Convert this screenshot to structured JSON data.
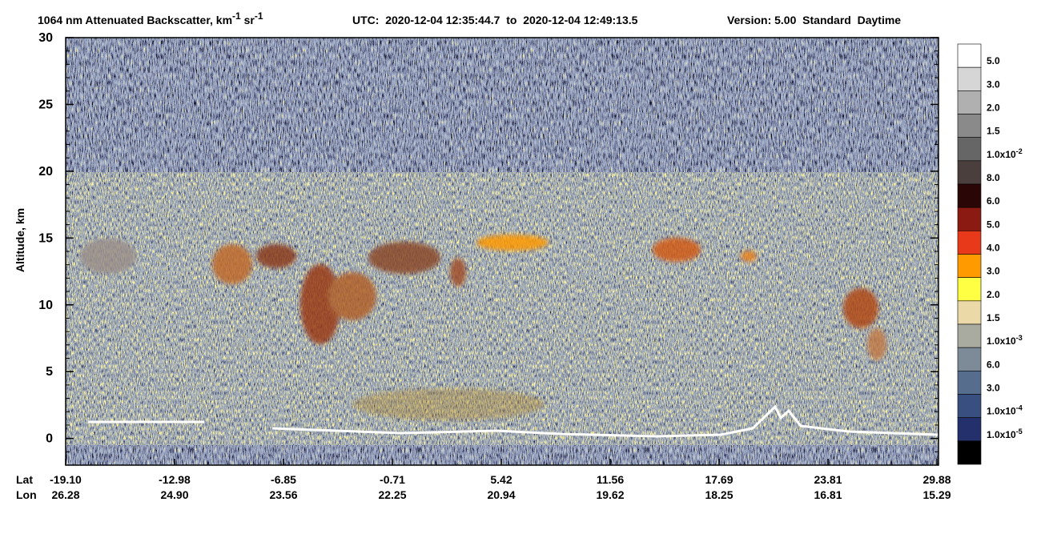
{
  "header": {
    "title_main": "1064 nm Attenuated Backscatter, km",
    "title_exp_1": "-1",
    "title_unit_2": "sr",
    "title_exp_2": "-1",
    "utc": "UTC:  2020-12-04 12:35:44.7  to  2020-12-04 12:49:13.5",
    "version": "Version: 5.00  Standard  Daytime"
  },
  "chart_data": {
    "type": "heatmap",
    "y_label": "Altitude, km",
    "ylim": [
      -2,
      30
    ],
    "yticks": [
      0,
      5,
      10,
      15,
      20,
      25,
      30
    ],
    "x_row_labels": [
      "Lat",
      "Lon"
    ],
    "lat": [
      "-19.10",
      "-12.98",
      "-6.85",
      "-0.71",
      "5.42",
      "11.56",
      "17.69",
      "23.81",
      "29.88"
    ],
    "lon": [
      "26.28",
      "24.90",
      "23.56",
      "22.25",
      "20.94",
      "19.62",
      "18.25",
      "16.81",
      "15.29"
    ],
    "colorbar": {
      "colors": [
        "#ffffff",
        "#d6d6d6",
        "#b0b0b0",
        "#8a8a8a",
        "#666666",
        "#4a3f3c",
        "#2b0606",
        "#8a1a12",
        "#e8391a",
        "#ff9a00",
        "#ffff44",
        "#ebd9a8",
        "#a9aba0",
        "#7d8a98",
        "#566d8e",
        "#394f80",
        "#24306c",
        "#000000"
      ],
      "labels": [
        {
          "text": "5.0"
        },
        {
          "text": "3.0"
        },
        {
          "text": "2.0"
        },
        {
          "text": "1.5"
        },
        {
          "text": "1.0x10",
          "exp": "-2"
        },
        {
          "text": "8.0"
        },
        {
          "text": "6.0"
        },
        {
          "text": "5.0"
        },
        {
          "text": "4.0"
        },
        {
          "text": "3.0"
        },
        {
          "text": "2.0"
        },
        {
          "text": "1.5"
        },
        {
          "text": "1.0x10",
          "exp": "-3"
        },
        {
          "text": "6.0"
        },
        {
          "text": "3.0"
        },
        {
          "text": "1.0x10",
          "exp": "-4"
        },
        {
          "text": "1.0x10",
          "exp": "-5"
        }
      ]
    }
  }
}
